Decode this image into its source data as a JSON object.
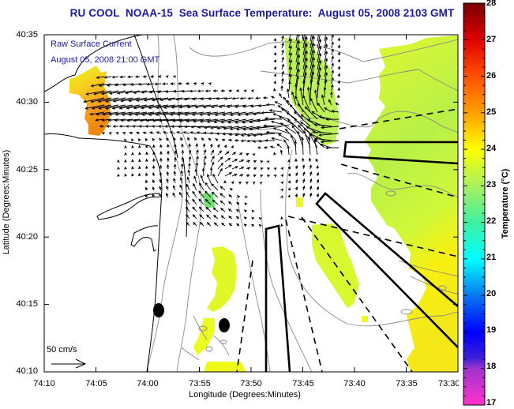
{
  "title": "RU COOL  NOAA-15  Sea Surface Temperature:  August 05, 2008 2103 GMT",
  "overlay": {
    "line1": "Raw Surface Current",
    "line2": "August 05, 2008 21:00 GMT",
    "scale_label": "50 cm/s"
  },
  "axes": {
    "xlabel": "Longitude (Degrees:Minutes)",
    "ylabel": "Latitude (Degrees:Minutes)",
    "xticks": [
      "74:10",
      "74:05",
      "74:00",
      "73:55",
      "73:50",
      "73:45",
      "73:40",
      "73:35",
      "73:30"
    ],
    "yticks": [
      "40:35",
      "40:30",
      "40:25",
      "40:20",
      "40:15",
      "40:10"
    ]
  },
  "colorbar": {
    "label": "Temperature (°C)",
    "min": 17,
    "max": 28,
    "ticks": [
      "28",
      "27",
      "26",
      "25",
      "24",
      "23",
      "22",
      "21",
      "20",
      "19",
      "18",
      "17"
    ],
    "stops": [
      {
        "t": 17,
        "color": "#ff33cc"
      },
      {
        "t": 18,
        "color": "#a033d0"
      },
      {
        "t": 18.3,
        "color": "#3a1ed8"
      },
      {
        "t": 19,
        "color": "#0000ff"
      },
      {
        "t": 20,
        "color": "#0a78f0"
      },
      {
        "t": 21,
        "color": "#00ffff"
      },
      {
        "t": 22,
        "color": "#40f0a0"
      },
      {
        "t": 23,
        "color": "#a8f060"
      },
      {
        "t": 24,
        "color": "#ffff00"
      },
      {
        "t": 25,
        "color": "#ffa000"
      },
      {
        "t": 26,
        "color": "#ff5000"
      },
      {
        "t": 27,
        "color": "#e00000"
      },
      {
        "t": 28,
        "color": "#780000"
      }
    ]
  },
  "colors": {
    "title": "#1a1aa8",
    "land_outline": "#000000",
    "bathymetry": "#8a8a8a",
    "sst_warm": "#f4a020",
    "sst_mid": "#e8ff20",
    "sst_cool": "#b8f040"
  },
  "markers": [
    {
      "name": "station-marker-1",
      "lon": "74:01",
      "lat": "40:14"
    },
    {
      "name": "station-marker-2",
      "lon": "73:57",
      "lat": "40:13"
    }
  ]
}
